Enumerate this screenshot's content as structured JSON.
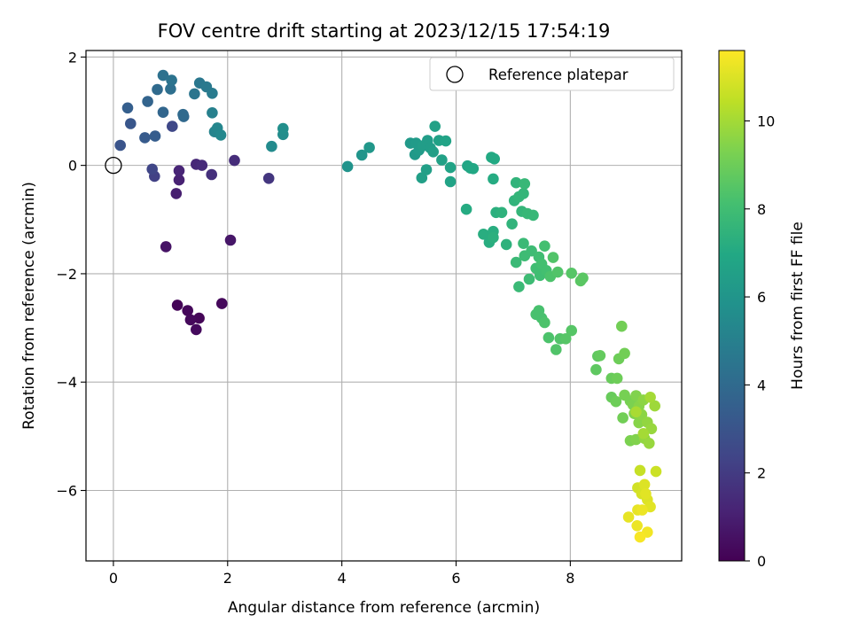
{
  "chart_data": {
    "type": "scatter",
    "title": "FOV centre drift starting at 2023/12/15 17:54:19",
    "xlabel": "Angular distance from reference (arcmin)",
    "ylabel": "Rotation from reference (arcmin)",
    "xlim": [
      -0.48,
      9.95
    ],
    "ylim": [
      -7.3,
      2.12
    ],
    "x_ticks": [
      0,
      2,
      4,
      6,
      8
    ],
    "y_ticks": [
      2,
      0,
      -2,
      -4,
      -6
    ],
    "grid": true,
    "legend": {
      "position": "top-right",
      "entries": [
        "Reference platepar"
      ]
    },
    "reference_point": {
      "x": 0,
      "y": 0
    },
    "colorbar": {
      "label": "Hours from first FF file",
      "range": [
        0,
        11.6
      ],
      "ticks": [
        0,
        2,
        4,
        6,
        8,
        10
      ],
      "colormap": "viridis"
    },
    "points": [
      [
        1.12,
        -2.58,
        0.1
      ],
      [
        1.3,
        -2.68,
        0.2
      ],
      [
        1.5,
        -2.82,
        0.15
      ],
      [
        1.45,
        -3.03,
        0.3
      ],
      [
        1.35,
        -2.85,
        0.25
      ],
      [
        1.9,
        -2.55,
        0.25
      ],
      [
        0.92,
        -1.5,
        0.6
      ],
      [
        2.05,
        -1.38,
        0.7
      ],
      [
        1.1,
        -0.52,
        1.0
      ],
      [
        1.15,
        -0.27,
        1.1
      ],
      [
        1.15,
        -0.1,
        1.2
      ],
      [
        1.45,
        0.02,
        1.3
      ],
      [
        1.55,
        0.0,
        1.4
      ],
      [
        1.72,
        -0.17,
        1.6
      ],
      [
        2.12,
        0.09,
        1.5
      ],
      [
        2.72,
        -0.24,
        1.8
      ],
      [
        0.72,
        -0.2,
        2.2
      ],
      [
        0.68,
        -0.07,
        2.4
      ],
      [
        1.03,
        0.72,
        2.5
      ],
      [
        0.12,
        0.37,
        3.0
      ],
      [
        0.3,
        0.77,
        3.1
      ],
      [
        0.55,
        0.51,
        3.3
      ],
      [
        0.73,
        0.54,
        3.4
      ],
      [
        0.25,
        1.06,
        3.5
      ],
      [
        0.6,
        1.18,
        3.7
      ],
      [
        0.87,
        0.98,
        3.8
      ],
      [
        1.23,
        0.9,
        3.9
      ],
      [
        1.22,
        0.94,
        4.0
      ],
      [
        0.77,
        1.4,
        4.0
      ],
      [
        1.0,
        1.41,
        4.2
      ],
      [
        0.87,
        1.66,
        4.3
      ],
      [
        1.02,
        1.57,
        4.4
      ],
      [
        1.42,
        1.32,
        4.5
      ],
      [
        1.51,
        1.52,
        4.6
      ],
      [
        1.63,
        1.45,
        4.7
      ],
      [
        1.73,
        1.33,
        4.8
      ],
      [
        1.73,
        0.97,
        5.0
      ],
      [
        1.77,
        0.62,
        5.2
      ],
      [
        1.82,
        0.69,
        5.3
      ],
      [
        1.88,
        0.56,
        5.4
      ],
      [
        2.77,
        0.35,
        5.5
      ],
      [
        2.97,
        0.57,
        5.6
      ],
      [
        2.97,
        0.68,
        5.7
      ],
      [
        4.1,
        -0.02,
        5.9
      ],
      [
        4.35,
        0.19,
        6.0
      ],
      [
        4.48,
        0.33,
        6.1
      ],
      [
        5.2,
        0.41,
        6.2
      ],
      [
        5.28,
        0.2,
        6.2
      ],
      [
        5.3,
        0.41,
        6.3
      ],
      [
        5.35,
        0.28,
        6.3
      ],
      [
        5.42,
        0.36,
        6.4
      ],
      [
        5.5,
        0.46,
        6.4
      ],
      [
        5.55,
        0.32,
        6.4
      ],
      [
        5.48,
        -0.08,
        6.5
      ],
      [
        5.4,
        -0.23,
        6.5
      ],
      [
        5.6,
        0.25,
        6.5
      ],
      [
        5.63,
        0.72,
        6.6
      ],
      [
        5.7,
        0.46,
        6.6
      ],
      [
        5.75,
        0.1,
        6.6
      ],
      [
        5.82,
        0.45,
        6.7
      ],
      [
        5.9,
        -0.04,
        6.7
      ],
      [
        5.9,
        -0.3,
        6.7
      ],
      [
        6.2,
        -0.01,
        6.8
      ],
      [
        6.25,
        -0.05,
        6.9
      ],
      [
        6.3,
        -0.06,
        6.9
      ],
      [
        6.62,
        0.15,
        7.0
      ],
      [
        6.67,
        0.12,
        7.0
      ],
      [
        6.65,
        -0.25,
        7.1
      ],
      [
        6.18,
        -0.81,
        7.1
      ],
      [
        6.48,
        -1.27,
        7.2
      ],
      [
        6.58,
        -1.42,
        7.2
      ],
      [
        6.65,
        -1.22,
        7.2
      ],
      [
        6.65,
        -1.33,
        7.3
      ],
      [
        6.7,
        -0.87,
        7.3
      ],
      [
        6.8,
        -0.87,
        7.4
      ],
      [
        6.88,
        -1.46,
        7.4
      ],
      [
        6.98,
        -1.08,
        7.5
      ],
      [
        7.02,
        -0.65,
        7.5
      ],
      [
        7.05,
        -0.32,
        7.5
      ],
      [
        7.1,
        -0.58,
        7.6
      ],
      [
        7.15,
        -0.85,
        7.6
      ],
      [
        7.18,
        -0.52,
        7.6
      ],
      [
        7.2,
        -0.34,
        7.7
      ],
      [
        7.25,
        -0.89,
        7.7
      ],
      [
        7.35,
        -0.92,
        7.7
      ],
      [
        7.05,
        -1.79,
        7.8
      ],
      [
        7.1,
        -2.24,
        7.8
      ],
      [
        7.18,
        -1.44,
        7.8
      ],
      [
        7.2,
        -1.67,
        7.9
      ],
      [
        7.28,
        -2.1,
        7.9
      ],
      [
        7.32,
        -1.58,
        7.9
      ],
      [
        7.4,
        -1.9,
        8.0
      ],
      [
        7.45,
        -1.69,
        8.0
      ],
      [
        7.47,
        -2.03,
        8.0
      ],
      [
        7.5,
        -1.82,
        8.1
      ],
      [
        7.55,
        -1.49,
        8.1
      ],
      [
        7.58,
        -1.94,
        8.1
      ],
      [
        7.4,
        -2.75,
        8.2
      ],
      [
        7.45,
        -2.68,
        8.2
      ],
      [
        7.5,
        -2.82,
        8.2
      ],
      [
        7.55,
        -2.9,
        8.3
      ],
      [
        7.62,
        -3.18,
        8.3
      ],
      [
        7.65,
        -2.05,
        8.3
      ],
      [
        7.7,
        -1.7,
        8.4
      ],
      [
        7.75,
        -3.4,
        8.4
      ],
      [
        7.78,
        -1.97,
        8.4
      ],
      [
        7.82,
        -3.2,
        8.4
      ],
      [
        7.92,
        -3.2,
        8.5
      ],
      [
        8.02,
        -1.99,
        8.5
      ],
      [
        8.02,
        -3.05,
        8.5
      ],
      [
        8.18,
        -2.13,
        8.6
      ],
      [
        8.22,
        -2.08,
        8.6
      ],
      [
        8.45,
        -3.77,
        8.7
      ],
      [
        8.48,
        -3.52,
        8.7
      ],
      [
        8.52,
        -3.51,
        8.8
      ],
      [
        8.72,
        -3.93,
        8.9
      ],
      [
        8.72,
        -4.28,
        8.9
      ],
      [
        8.8,
        -4.36,
        9.0
      ],
      [
        8.82,
        -3.93,
        9.0
      ],
      [
        8.85,
        -3.57,
        9.0
      ],
      [
        8.9,
        -2.97,
        9.1
      ],
      [
        8.92,
        -4.66,
        9.1
      ],
      [
        8.95,
        -3.47,
        9.1
      ],
      [
        8.95,
        -4.24,
        9.2
      ],
      [
        9.05,
        -4.35,
        9.2
      ],
      [
        9.05,
        -5.08,
        9.3
      ],
      [
        9.1,
        -4.42,
        9.3
      ],
      [
        9.12,
        -4.58,
        9.4
      ],
      [
        9.15,
        -4.25,
        9.4
      ],
      [
        9.15,
        -5.06,
        9.4
      ],
      [
        9.2,
        -4.75,
        9.5
      ],
      [
        9.2,
        -4.45,
        9.5
      ],
      [
        9.25,
        -4.6,
        9.6
      ],
      [
        9.28,
        -4.33,
        9.6
      ],
      [
        9.3,
        -5.04,
        9.7
      ],
      [
        9.35,
        -4.74,
        9.7
      ],
      [
        9.38,
        -5.13,
        9.8
      ],
      [
        9.42,
        -4.86,
        9.8
      ],
      [
        9.48,
        -4.44,
        9.9
      ],
      [
        9.4,
        -4.28,
        10.0
      ],
      [
        9.28,
        -4.95,
        10.0
      ],
      [
        9.15,
        -4.55,
        10.1
      ],
      [
        9.22,
        -5.63,
        10.6
      ],
      [
        9.5,
        -5.65,
        10.7
      ],
      [
        9.18,
        -5.95,
        10.8
      ],
      [
        9.25,
        -6.06,
        10.9
      ],
      [
        9.3,
        -5.89,
        11.0
      ],
      [
        9.35,
        -6.17,
        11.0
      ],
      [
        9.32,
        -6.06,
        11.1
      ],
      [
        9.4,
        -6.3,
        11.1
      ],
      [
        9.02,
        -6.49,
        11.2
      ],
      [
        9.18,
        -6.36,
        11.2
      ],
      [
        9.26,
        -6.36,
        11.3
      ],
      [
        9.17,
        -6.65,
        11.3
      ],
      [
        9.35,
        -6.77,
        11.4
      ],
      [
        9.22,
        -6.86,
        11.5
      ]
    ]
  }
}
